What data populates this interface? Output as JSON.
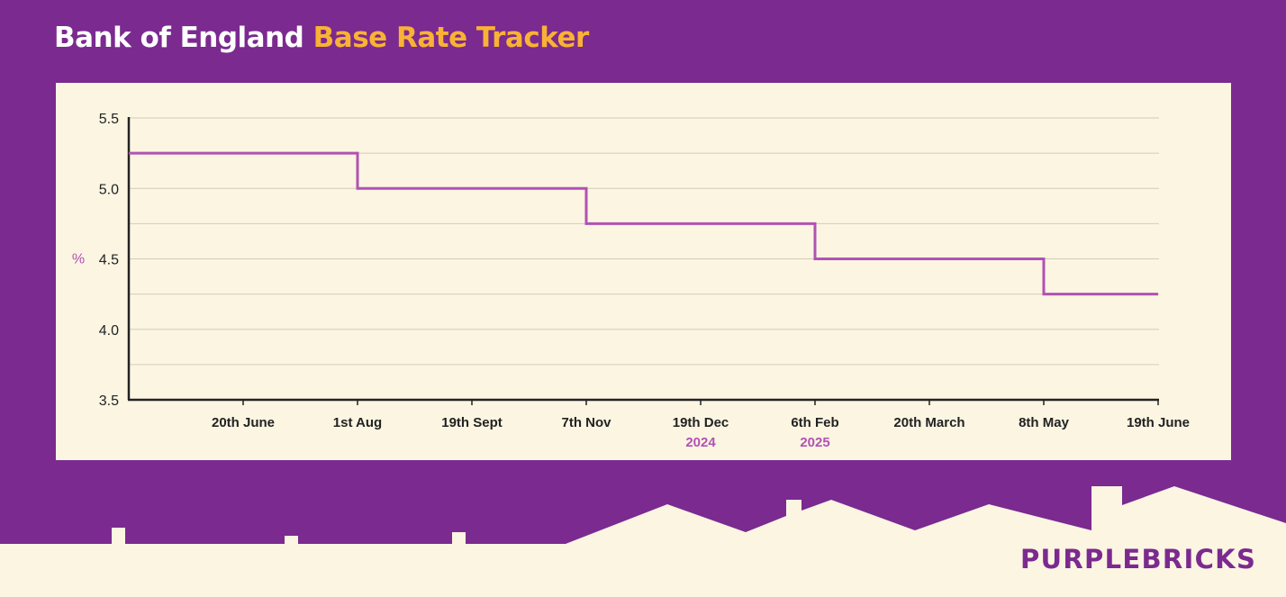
{
  "header": {
    "title_main": "Bank of England",
    "title_accent": "Base Rate Tracker"
  },
  "brand": {
    "logo_text": "PURPLEBRICKS"
  },
  "colors": {
    "background": "#7b2a8f",
    "panel": "#fbf5e2",
    "accent": "#f9b234",
    "line": "#b152b3",
    "axis": "#222222",
    "grid": "#d2cdb9",
    "year_label": "#b152b3"
  },
  "chart_data": {
    "type": "line",
    "step": true,
    "title": "",
    "ylabel": "%",
    "xlabel": "",
    "ylim": [
      3.5,
      5.5
    ],
    "yticks": [
      "5.5",
      "5.0",
      "4.5",
      "4.0",
      "3.5"
    ],
    "y_grid_step": 0.25,
    "categories": [
      "20th June",
      "1st Aug",
      "19th Sept",
      "7th Nov",
      "19th Dec",
      "6th Feb",
      "20th March",
      "8th May",
      "19th June"
    ],
    "year_labels": [
      {
        "category": "19th Dec",
        "label": "2024"
      },
      {
        "category": "6th Feb",
        "label": "2025"
      }
    ],
    "series": [
      {
        "values": [
          5.25,
          5.0,
          5.0,
          4.75,
          4.75,
          4.5,
          4.5,
          4.25,
          4.25
        ]
      }
    ],
    "grid": true,
    "legend": "none"
  }
}
